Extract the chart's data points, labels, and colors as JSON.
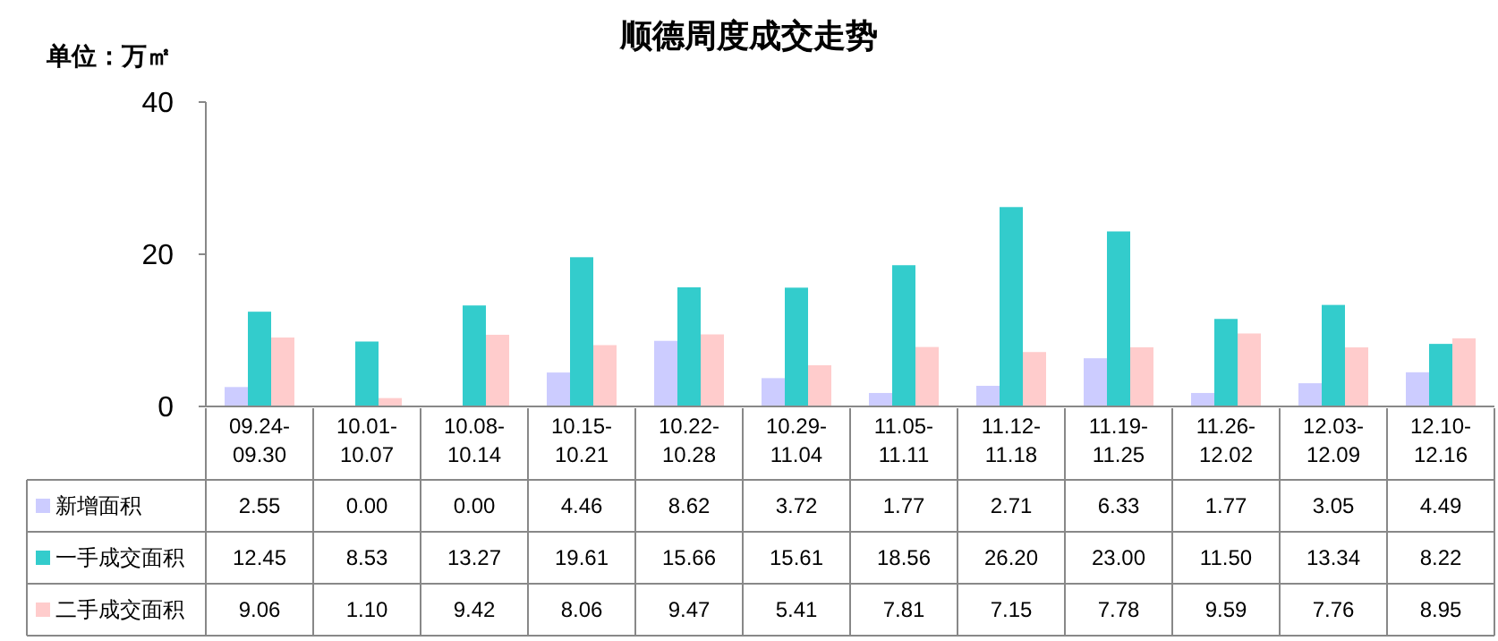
{
  "chart_data": {
    "type": "bar",
    "title": "顺德周度成交走势",
    "ylabel": "单位：万㎡",
    "categories": [
      "09.24-09.30",
      "10.01-10.07",
      "10.08-10.14",
      "10.15-10.21",
      "10.22-10.28",
      "10.29-11.04",
      "11.05-11.11",
      "11.12-11.18",
      "11.19-11.25",
      "11.26-12.02",
      "12.03-12.09",
      "12.10-12.16"
    ],
    "series": [
      {
        "name": "新增面积",
        "color": "#ccccff",
        "values": [
          2.55,
          0,
          0,
          4.46,
          8.62,
          3.72,
          1.77,
          2.71,
          6.33,
          1.77,
          3.05,
          4.49
        ],
        "value_labels": [
          "2.55",
          "0.00",
          "0.00",
          "4.46",
          "8.62",
          "3.72",
          "1.77",
          "2.71",
          "6.33",
          "1.77",
          "3.05",
          "4.49"
        ]
      },
      {
        "name": "一手成交面积",
        "color": "#33cccc",
        "values": [
          12.45,
          8.53,
          13.27,
          19.61,
          15.66,
          15.61,
          18.56,
          26.2,
          23,
          11.5,
          13.34,
          8.22
        ],
        "value_labels": [
          "12.45",
          "8.53",
          "13.27",
          "19.61",
          "15.66",
          "15.61",
          "18.56",
          "26.20",
          "23.00",
          "11.50",
          "13.34",
          "8.22"
        ]
      },
      {
        "name": "二手成交面积",
        "color": "#ffcccc",
        "values": [
          9.06,
          1.1,
          9.42,
          8.06,
          9.47,
          5.41,
          7.81,
          7.15,
          7.78,
          9.59,
          7.76,
          8.95
        ],
        "value_labels": [
          "9.06",
          "1.10",
          "9.42",
          "8.06",
          "9.47",
          "5.41",
          "7.81",
          "7.15",
          "7.78",
          "9.59",
          "7.76",
          "8.95"
        ]
      }
    ],
    "ylim": [
      0,
      40
    ],
    "yticks": [
      0,
      20,
      40
    ],
    "grid": false,
    "legend": "bottom"
  }
}
